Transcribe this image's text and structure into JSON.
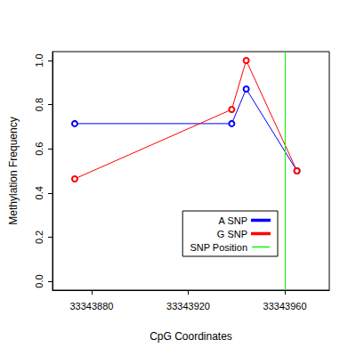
{
  "chart_data": {
    "type": "line",
    "x_label": "CpG Coordinates",
    "y_label": "Methylation Frequency",
    "xlim": [
      33343863.8,
      33343978.4
    ],
    "xticks": [
      33343880,
      33343920,
      33343960
    ],
    "ylim": [
      -0.04,
      1.04
    ],
    "yticks": [
      {
        "value": 0,
        "label": "0.0"
      },
      0.2,
      0.4,
      0.6,
      0.8,
      {
        "value": 1,
        "label": "1.0"
      }
    ],
    "grid": false,
    "legend": "right",
    "series": [
      {
        "name": "A SNP",
        "color": "#0000ff",
        "marker": "circle",
        "line_style": "solid",
        "x": [
          33343873,
          33343938,
          33343944,
          33343965
        ],
        "values": [
          0.714,
          0.714,
          0.871,
          0.5
        ]
      },
      {
        "name": "G SNP",
        "color": "#ff0000",
        "marker": "circle",
        "line_style": "solid",
        "x": [
          33343873,
          33343938,
          33343944,
          33343965
        ],
        "values": [
          0.464,
          0.778,
          1.0,
          0.5
        ]
      },
      {
        "name": "SNP Position",
        "color": "#00ff00",
        "type": "vline",
        "line_style": "solid",
        "x": [
          33343960
        ]
      }
    ]
  }
}
